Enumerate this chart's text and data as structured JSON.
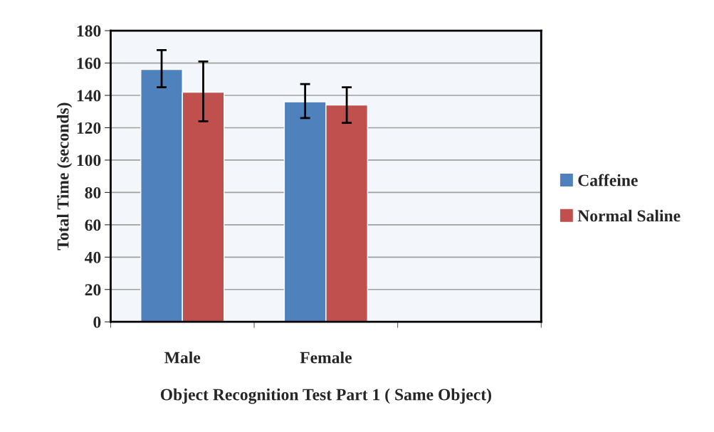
{
  "chart_data": {
    "type": "bar",
    "xlabel": "Object Recognition Test Part 1 ( Same Object)",
    "ylabel": "Total Time (seconds)",
    "categories": [
      "Male",
      "Female",
      null
    ],
    "series": [
      {
        "name": "Caffeine",
        "color": "#4f81bd",
        "values": [
          156,
          136,
          null
        ],
        "errors": [
          [
            145,
            168
          ],
          [
            126,
            147
          ],
          null
        ]
      },
      {
        "name": "Normal Saline",
        "color": "#c0504d",
        "values": [
          142,
          134,
          null
        ],
        "errors": [
          [
            124,
            161
          ],
          [
            123,
            145
          ],
          null
        ]
      }
    ],
    "ylim": [
      0,
      180
    ],
    "yticks": [
      0,
      20,
      40,
      60,
      80,
      100,
      120,
      140,
      160,
      180
    ],
    "grid": "y",
    "legend": "right"
  }
}
